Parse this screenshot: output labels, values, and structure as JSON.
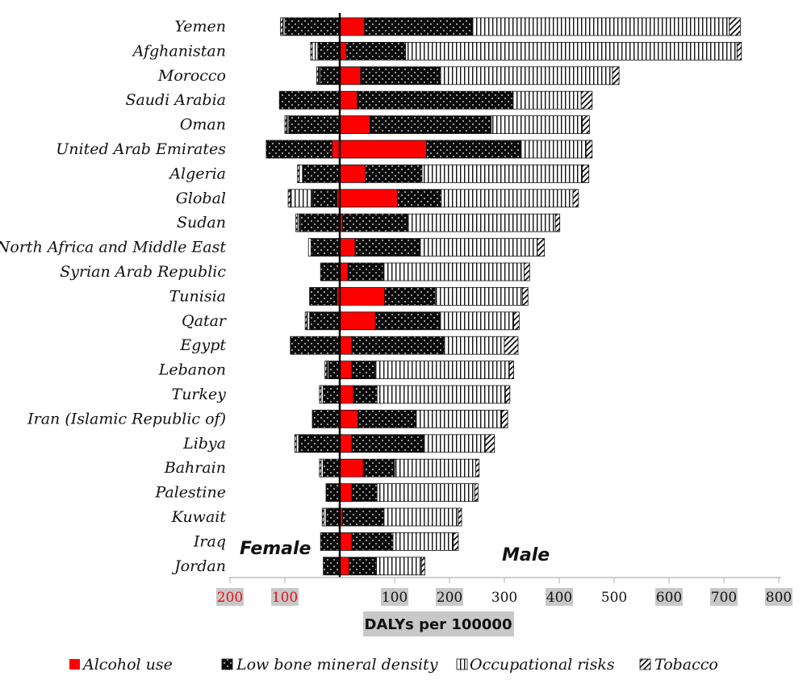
{
  "chart_data": {
    "type": "bar",
    "orientation": "horizontal-stacked-diverging",
    "xlabel": "DALYs per 100000",
    "female_label": "Female",
    "male_label": "Male",
    "x_ticks_female": [
      "200",
      "100"
    ],
    "x_ticks_male": [
      "100",
      "200",
      "300",
      "400",
      "500",
      "600",
      "700",
      "800"
    ],
    "xlim": [
      -200,
      800
    ],
    "colors": {
      "alcohol": "#ff0000",
      "lbmd": "#0a0a0a",
      "occupational": "#ffffff",
      "tobacco": "#ffffff",
      "female_tick": "#e8101a",
      "tick_bg": "#c8c8c8"
    },
    "series": [
      {
        "key": "alcohol",
        "name": "Alcohol use",
        "pattern": "solid-red"
      },
      {
        "key": "lbmd",
        "name": "Low bone mineral density",
        "pattern": "black-dots"
      },
      {
        "key": "occupational",
        "name": "Occupational risks",
        "pattern": "vertical-stripes"
      },
      {
        "key": "tobacco",
        "name": "Tobacco",
        "pattern": "diagonal-stripes"
      }
    ],
    "categories": [
      "Yemen",
      "Afghanistan",
      "Morocco",
      "Saudi Arabia",
      "Oman",
      "United Arab Emirates",
      "Algeria",
      "Global",
      "Sudan",
      "North Africa and Middle East",
      "Syrian Arab Republic",
      "Tunisia",
      "Qatar",
      "Egypt",
      "Lebanon",
      "Turkey",
      "Iran (Islamic Republic of)",
      "Libya",
      "Bahrain",
      "Palestine",
      "Kuwait",
      "Iraq",
      "Jordan"
    ],
    "male": {
      "alcohol": [
        45,
        12,
        38,
        32,
        55,
        158,
        47,
        105,
        5,
        28,
        15,
        82,
        65,
        22,
        22,
        25,
        33,
        22,
        43,
        22,
        5,
        22,
        17
      ],
      "lbmd": [
        197,
        108,
        146,
        283,
        221,
        172,
        103,
        80,
        120,
        118,
        64,
        92,
        118,
        168,
        42,
        43,
        105,
        132,
        57,
        46,
        75,
        75,
        50
      ],
      "occupational": [
        468,
        604,
        313,
        125,
        166,
        119,
        292,
        240,
        268,
        214,
        257,
        159,
        134,
        110,
        245,
        234,
        157,
        111,
        148,
        178,
        136,
        110,
        82
      ],
      "tobacco": [
        20,
        8,
        12,
        20,
        13,
        11,
        12,
        10,
        8,
        13,
        10,
        10,
        10,
        25,
        8,
        8,
        11,
        17,
        6,
        6,
        6,
        9,
        6
      ]
    },
    "female": {
      "alcohol": [
        0,
        0,
        0,
        0,
        0,
        14,
        0,
        5,
        0,
        0,
        0,
        5,
        0,
        0,
        0,
        0,
        0,
        0,
        0,
        0,
        0,
        0,
        0
      ],
      "lbmd": [
        100,
        40,
        35,
        110,
        93,
        120,
        68,
        45,
        72,
        52,
        35,
        50,
        55,
        90,
        20,
        30,
        50,
        75,
        30,
        25,
        25,
        35,
        30
      ],
      "occupational": [
        4,
        10,
        4,
        0,
        4,
        0,
        6,
        40,
        5,
        5,
        0,
        0,
        5,
        0,
        4,
        4,
        0,
        4,
        4,
        0,
        4,
        0,
        0
      ],
      "tobacco": [
        4,
        3,
        3,
        0,
        3,
        0,
        3,
        4,
        3,
        0,
        0,
        0,
        3,
        0,
        3,
        3,
        0,
        3,
        3,
        0,
        3,
        0,
        0
      ]
    }
  }
}
